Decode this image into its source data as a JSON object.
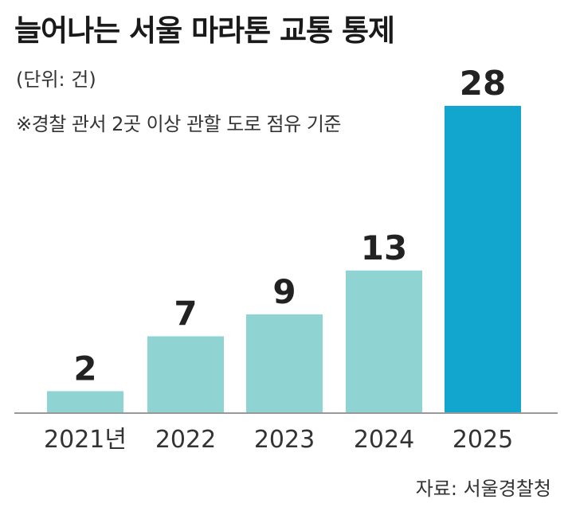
{
  "header": {
    "title": "늘어나는 서울 마라톤 교통 통제",
    "unit": "(단위: 건)",
    "note": "※경찰 관서 2곳 이상 관할 도로 점유 기준"
  },
  "footer": {
    "source": "자료: 서울경찰청"
  },
  "colors": {
    "bar_regular": "#8fd3d2",
    "bar_highlight": "#12a6cf",
    "baseline": "#999999"
  },
  "chart_data": {
    "type": "bar",
    "title": "늘어나는 서울 마라톤 교통 통제",
    "unit": "(단위: 건)",
    "categories": [
      "2021년",
      "2022",
      "2023",
      "2024",
      "2025"
    ],
    "values": [
      2,
      7,
      9,
      13,
      28
    ],
    "highlight_index": 4,
    "ylim": [
      0,
      28
    ],
    "grid": false,
    "legend": "none",
    "xlabel": "",
    "ylabel": ""
  }
}
